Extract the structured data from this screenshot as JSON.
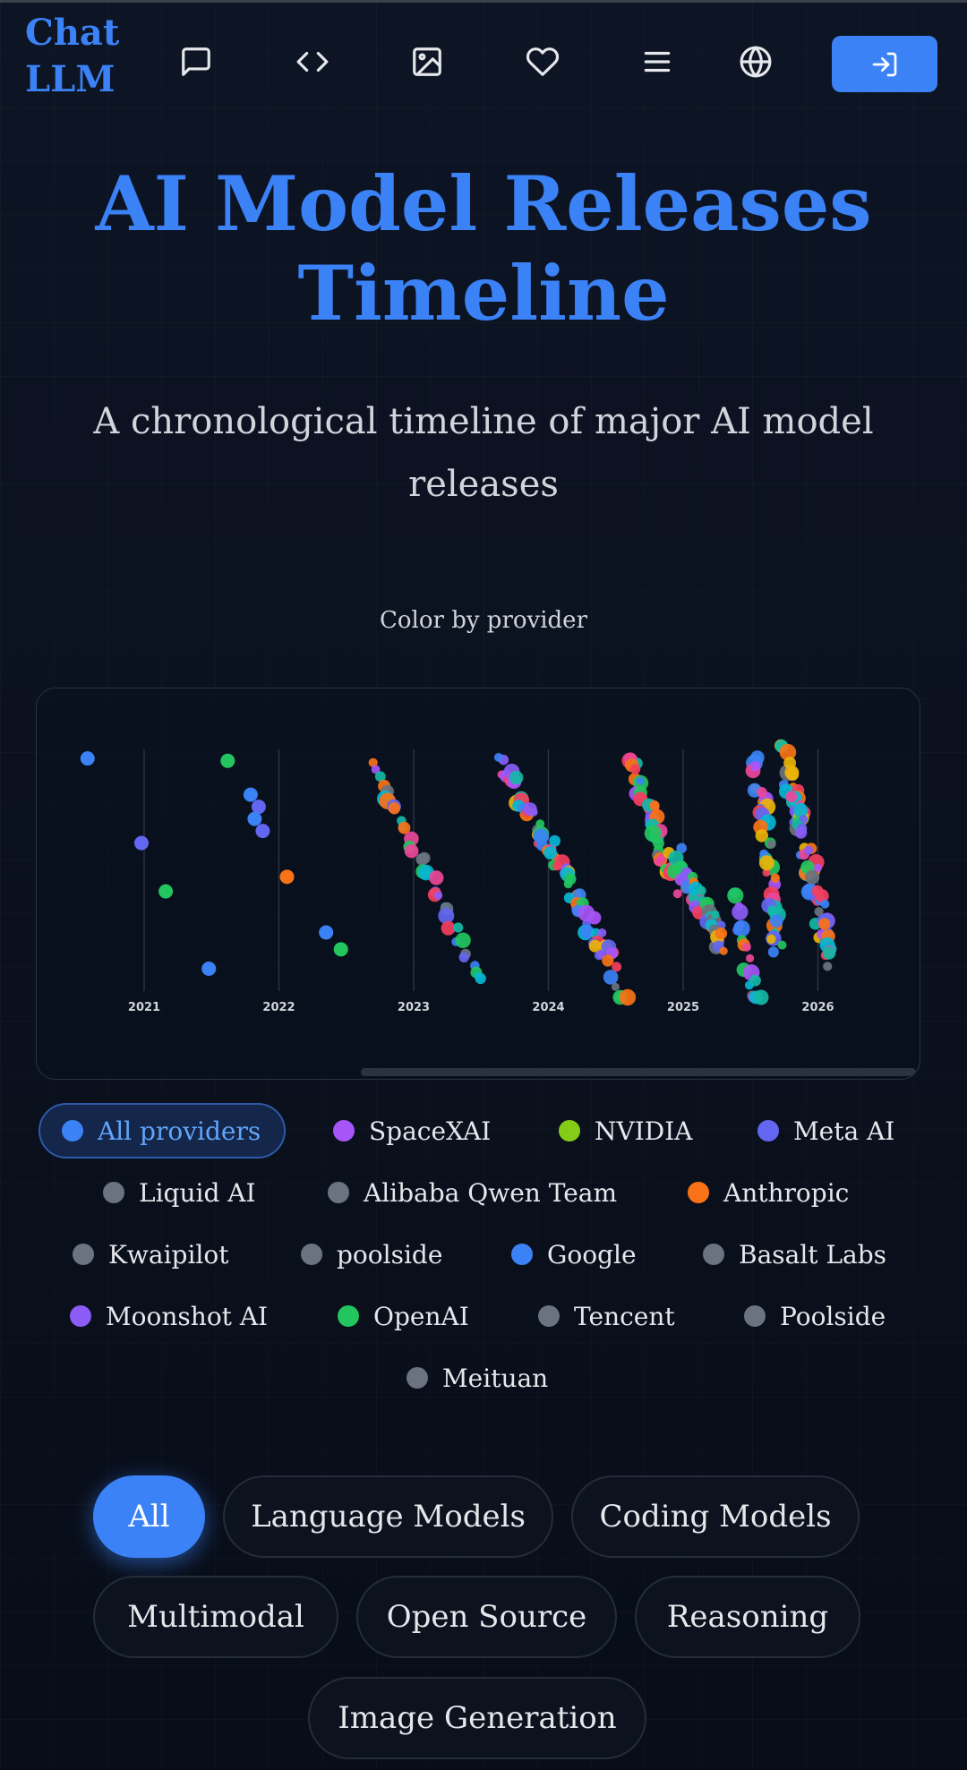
{
  "header": {
    "logo": "Chat LLM",
    "nav_icons": [
      "chat-icon",
      "code-icon",
      "image-icon",
      "heart-icon",
      "menu-icon",
      "globe-icon"
    ],
    "login_icon": "login-icon"
  },
  "hero": {
    "title": "AI Model Releases Timeline",
    "subtitle": "A chronological timeline of major AI model releases"
  },
  "color_by_label": "Color by provider",
  "chart_data": {
    "type": "scatter",
    "title": "",
    "x_ticks": [
      "2021",
      "2022",
      "2023",
      "2024",
      "2025",
      "2026"
    ],
    "xlim": [
      "2020-07",
      "2026-03"
    ],
    "grid": "vertical",
    "note_values": "each dot is one model release; y is stacking order within a period",
    "points": [
      {
        "x": 2020.58,
        "y": 0.97,
        "provider": "Google"
      },
      {
        "x": 2020.98,
        "y": 0.62,
        "provider": "Meta AI"
      },
      {
        "x": 2021.16,
        "y": 0.42,
        "provider": "OpenAI"
      },
      {
        "x": 2021.48,
        "y": 0.1,
        "provider": "Google"
      },
      {
        "x": 2021.62,
        "y": 0.96,
        "provider": "OpenAI"
      },
      {
        "x": 2021.79,
        "y": 0.82,
        "provider": "Google"
      },
      {
        "x": 2021.85,
        "y": 0.77,
        "provider": "Meta AI"
      },
      {
        "x": 2021.82,
        "y": 0.72,
        "provider": "Google"
      },
      {
        "x": 2021.88,
        "y": 0.67,
        "provider": "Meta AI"
      },
      {
        "x": 2022.06,
        "y": 0.48,
        "provider": "Anthropic"
      },
      {
        "x": 2022.35,
        "y": 0.25,
        "provider": "Google"
      },
      {
        "x": 2022.46,
        "y": 0.18,
        "provider": "OpenAI"
      }
    ]
  },
  "legend": {
    "items": [
      {
        "label": "All providers",
        "color": "#3b82f6",
        "active": true
      },
      {
        "label": "SpaceXAI",
        "color": "#a855f7"
      },
      {
        "label": "NVIDIA",
        "color": "#84cc16"
      },
      {
        "label": "Meta AI",
        "color": "#6366f1"
      },
      {
        "label": "Liquid AI",
        "color": "#6b7280"
      },
      {
        "label": "Alibaba Qwen Team",
        "color": "#6b7280"
      },
      {
        "label": "Anthropic",
        "color": "#f97316"
      },
      {
        "label": "Kwaipilot",
        "color": "#6b7280"
      },
      {
        "label": "poolside",
        "color": "#6b7280"
      },
      {
        "label": "Google",
        "color": "#3b82f6"
      },
      {
        "label": "Basalt Labs",
        "color": "#6b7280"
      },
      {
        "label": "Moonshot AI",
        "color": "#8b5cf6"
      },
      {
        "label": "OpenAI",
        "color": "#22c55e"
      },
      {
        "label": "Tencent",
        "color": "#6b7280"
      },
      {
        "label": "Poolside",
        "color": "#6b7280"
      },
      {
        "label": "Meituan",
        "color": "#6b7280"
      }
    ]
  },
  "categories": {
    "items": [
      {
        "label": "All",
        "active": true
      },
      {
        "label": "Language Models"
      },
      {
        "label": "Coding Models"
      },
      {
        "label": "Multimodal"
      },
      {
        "label": "Open Source"
      },
      {
        "label": "Reasoning"
      },
      {
        "label": "Image Generation"
      }
    ]
  },
  "colors": {
    "accent": "#3b82f6",
    "background": "#0b1220"
  }
}
